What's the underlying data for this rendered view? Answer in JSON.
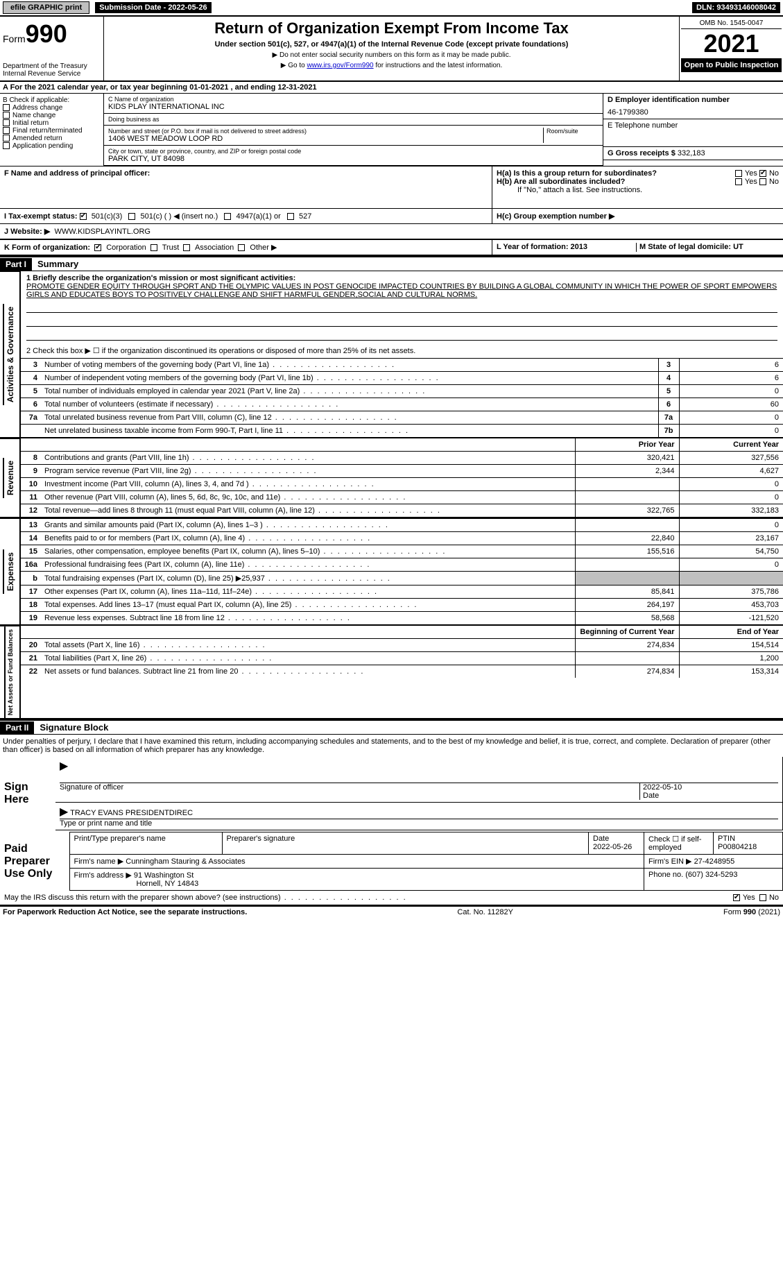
{
  "topbar": {
    "efile": "efile GRAPHIC print",
    "submission_label": "Submission Date - 2022-05-26",
    "dln": "DLN: 93493146008042"
  },
  "header": {
    "form_prefix": "Form",
    "form_number": "990",
    "title": "Return of Organization Exempt From Income Tax",
    "subtitle": "Under section 501(c), 527, or 4947(a)(1) of the Internal Revenue Code (except private foundations)",
    "note1": "▶ Do not enter social security numbers on this form as it may be made public.",
    "note2_pre": "▶ Go to ",
    "note2_link": "www.irs.gov/Form990",
    "note2_post": " for instructions and the latest information.",
    "dept": "Department of the Treasury",
    "irs": "Internal Revenue Service",
    "omb": "OMB No. 1545-0047",
    "year": "2021",
    "open": "Open to Public Inspection"
  },
  "lineA": "A For the 2021 calendar year, or tax year beginning 01-01-2021    , and ending 12-31-2021",
  "colB": {
    "heading": "B Check if applicable:",
    "items": [
      "Address change",
      "Name change",
      "Initial return",
      "Final return/terminated",
      "Amended return",
      "Application pending"
    ]
  },
  "colC": {
    "label_name": "C Name of organization",
    "org_name": "KIDS PLAY INTERNATIONAL INC",
    "dba_label": "Doing business as",
    "dba": "",
    "addr_label": "Number and street (or P.O. box if mail is not delivered to street address)",
    "room_label": "Room/suite",
    "addr": "1406 WEST MEADOW LOOP RD",
    "city_label": "City or town, state or province, country, and ZIP or foreign postal code",
    "city": "PARK CITY, UT  84098"
  },
  "colD": {
    "label": "D Employer identification number",
    "ein": "46-1799380",
    "tel_label": "E Telephone number",
    "tel": "",
    "gross_label": "G Gross receipts $",
    "gross": "332,183"
  },
  "rowF": {
    "label": "F  Name and address of principal officer:",
    "value": ""
  },
  "colH": {
    "ha": "H(a)  Is this a group return for subordinates?",
    "hb": "H(b)  Are all subordinates included?",
    "hb_note": "If \"No,\" attach a list. See instructions.",
    "hc": "H(c)  Group exemption number ▶",
    "yes": "Yes",
    "no": "No"
  },
  "rowI": {
    "label": "I   Tax-exempt status:",
    "opts": [
      "501(c)(3)",
      "501(c) (  ) ◀ (insert no.)",
      "4947(a)(1) or",
      "527"
    ]
  },
  "rowJ": {
    "label": "J   Website: ▶",
    "value": "WWW.KIDSPLAYINTL.ORG"
  },
  "rowK": {
    "label": "K Form of organization:",
    "opts": [
      "Corporation",
      "Trust",
      "Association",
      "Other ▶"
    ]
  },
  "rowL": {
    "l": "L Year of formation: 2013",
    "m": "M State of legal domicile: UT"
  },
  "part1": {
    "header": "Part I",
    "title": "Summary",
    "line1_label": "1  Briefly describe the organization's mission or most significant activities:",
    "mission": "PROMOTE GENDER EQUITY THROUGH SPORT AND THE OLYMPIC VALUES IN POST GENOCIDE IMPACTED COUNTRIES BY BUILDING A GLOBAL COMMUNITY IN WHICH THE POWER OF SPORT EMPOWERS GIRLS AND EDUCATES BOYS TO POSITIVELY CHALLENGE AND SHIFT HARMFUL GENDER,SOCIAL AND CULTURAL NORMS.",
    "line2": "2   Check this box ▶ ☐  if the organization discontinued its operations or disposed of more than 25% of its net assets."
  },
  "side_labels": {
    "gov": "Activities & Governance",
    "rev": "Revenue",
    "exp": "Expenses",
    "net": "Net Assets or Fund Balances"
  },
  "gov_rows": [
    {
      "n": "3",
      "t": "Number of voting members of the governing body (Part VI, line 1a)",
      "box": "3",
      "v": "6"
    },
    {
      "n": "4",
      "t": "Number of independent voting members of the governing body (Part VI, line 1b)",
      "box": "4",
      "v": "6"
    },
    {
      "n": "5",
      "t": "Total number of individuals employed in calendar year 2021 (Part V, line 2a)",
      "box": "5",
      "v": "0"
    },
    {
      "n": "6",
      "t": "Total number of volunteers (estimate if necessary)",
      "box": "6",
      "v": "60"
    },
    {
      "n": "7a",
      "t": "Total unrelated business revenue from Part VIII, column (C), line 12",
      "box": "7a",
      "v": "0"
    },
    {
      "n": "",
      "t": "Net unrelated business taxable income from Form 990-T, Part I, line 11",
      "box": "7b",
      "v": "0"
    }
  ],
  "twocol_header": {
    "prior": "Prior Year",
    "current": "Current Year"
  },
  "rev_rows": [
    {
      "n": "8",
      "t": "Contributions and grants (Part VIII, line 1h)",
      "p": "320,421",
      "c": "327,556"
    },
    {
      "n": "9",
      "t": "Program service revenue (Part VIII, line 2g)",
      "p": "2,344",
      "c": "4,627"
    },
    {
      "n": "10",
      "t": "Investment income (Part VIII, column (A), lines 3, 4, and 7d )",
      "p": "",
      "c": "0"
    },
    {
      "n": "11",
      "t": "Other revenue (Part VIII, column (A), lines 5, 6d, 8c, 9c, 10c, and 11e)",
      "p": "",
      "c": "0"
    },
    {
      "n": "12",
      "t": "Total revenue—add lines 8 through 11 (must equal Part VIII, column (A), line 12)",
      "p": "322,765",
      "c": "332,183"
    }
  ],
  "exp_rows": [
    {
      "n": "13",
      "t": "Grants and similar amounts paid (Part IX, column (A), lines 1–3 )",
      "p": "",
      "c": "0"
    },
    {
      "n": "14",
      "t": "Benefits paid to or for members (Part IX, column (A), line 4)",
      "p": "22,840",
      "c": "23,167"
    },
    {
      "n": "15",
      "t": "Salaries, other compensation, employee benefits (Part IX, column (A), lines 5–10)",
      "p": "155,516",
      "c": "54,750"
    },
    {
      "n": "16a",
      "t": "Professional fundraising fees (Part IX, column (A), line 11e)",
      "p": "",
      "c": "0"
    },
    {
      "n": "b",
      "t": "Total fundraising expenses (Part IX, column (D), line 25) ▶25,937",
      "p": "shade",
      "c": "shade"
    },
    {
      "n": "17",
      "t": "Other expenses (Part IX, column (A), lines 11a–11d, 11f–24e)",
      "p": "85,841",
      "c": "375,786"
    },
    {
      "n": "18",
      "t": "Total expenses. Add lines 13–17 (must equal Part IX, column (A), line 25)",
      "p": "264,197",
      "c": "453,703"
    },
    {
      "n": "19",
      "t": "Revenue less expenses. Subtract line 18 from line 12",
      "p": "58,568",
      "c": "-121,520"
    }
  ],
  "net_header": {
    "prior": "Beginning of Current Year",
    "current": "End of Year"
  },
  "net_rows": [
    {
      "n": "20",
      "t": "Total assets (Part X, line 16)",
      "p": "274,834",
      "c": "154,514"
    },
    {
      "n": "21",
      "t": "Total liabilities (Part X, line 26)",
      "p": "",
      "c": "1,200"
    },
    {
      "n": "22",
      "t": "Net assets or fund balances. Subtract line 21 from line 20",
      "p": "274,834",
      "c": "153,314"
    }
  ],
  "part2": {
    "header": "Part II",
    "title": "Signature Block",
    "decl": "Under penalties of perjury, I declare that I have examined this return, including accompanying schedules and statements, and to the best of my knowledge and belief, it is true, correct, and complete. Declaration of preparer (other than officer) is based on all information of which preparer has any knowledge."
  },
  "sign": {
    "sign_here": "Sign Here",
    "sig_officer": "Signature of officer",
    "date": "Date",
    "sig_date": "2022-05-10",
    "name": "TRACY EVANS  PRESIDENTDIREC",
    "name_label": "Type or print name and title"
  },
  "paid": {
    "label": "Paid Preparer Use Only",
    "col1": "Print/Type preparer's name",
    "col2": "Preparer's signature",
    "col3": "Date",
    "col3v": "2022-05-26",
    "col4": "Check ☐ if self-employed",
    "col5": "PTIN",
    "ptin": "P00804218",
    "firm_label": "Firm's name    ▶",
    "firm": "Cunningham Stauring & Associates",
    "ein_label": "Firm's EIN ▶",
    "ein": "27-4248955",
    "addr_label": "Firm's address ▶",
    "addr1": "91 Washington St",
    "addr2": "Hornell, NY  14843",
    "phone_label": "Phone no.",
    "phone": "(607) 324-5293"
  },
  "may_irs": "May the IRS discuss this return with the preparer shown above? (see instructions)",
  "footer": {
    "left": "For Paperwork Reduction Act Notice, see the separate instructions.",
    "mid": "Cat. No. 11282Y",
    "right": "Form 990 (2021)"
  }
}
